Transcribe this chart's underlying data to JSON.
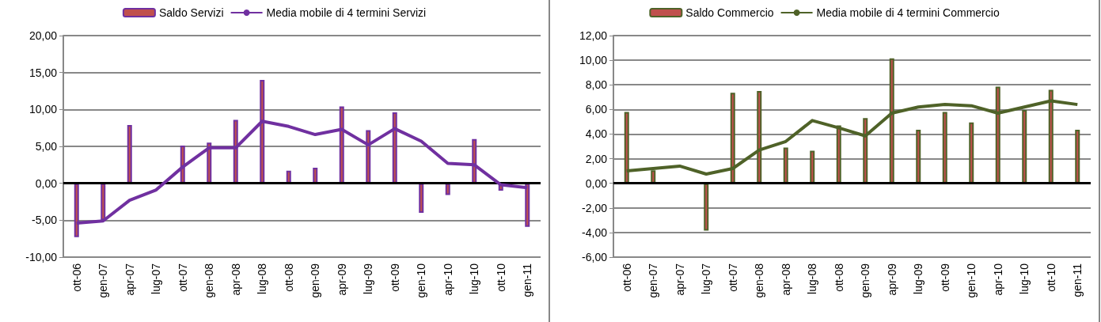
{
  "chart_data": [
    {
      "type": "bar",
      "categories": [
        "ott-06",
        "gen-07",
        "apr-07",
        "lug-07",
        "ott-07",
        "gen-08",
        "apr-08",
        "lug-08",
        "ott-08",
        "gen-09",
        "apr-09",
        "lug-09",
        "ott-09",
        "gen-10",
        "apr-10",
        "lug-10",
        "ott-10",
        "gen-11"
      ],
      "series": [
        {
          "name": "Saldo Servizi",
          "color": "#7030a0",
          "values": [
            -7.3,
            -5.0,
            7.9,
            0,
            5.1,
            5.5,
            8.6,
            14.0,
            1.7,
            2.1,
            10.4,
            7.2,
            9.6,
            -4.0,
            -1.6,
            6.0,
            -1.0,
            -5.9
          ]
        },
        {
          "name": "Media mobile di 4 termini Servizi",
          "type": "line",
          "color": "#7030a0",
          "values": [
            -5.4,
            -5.1,
            -2.3,
            -0.9,
            2.2,
            4.8,
            4.8,
            8.4,
            7.7,
            6.6,
            7.3,
            5.2,
            7.4,
            5.7,
            2.7,
            2.5,
            -0.2,
            -0.6
          ]
        }
      ],
      "ylim": [
        -10,
        20
      ],
      "yticks": [
        {
          "value": -10,
          "label": "-10,00"
        },
        {
          "value": -5,
          "label": "-5,00"
        },
        {
          "value": 0,
          "label": "0,00"
        },
        {
          "value": 5,
          "label": "5,00"
        },
        {
          "value": 10,
          "label": "10,00"
        },
        {
          "value": 15,
          "label": "15,00"
        },
        {
          "value": 20,
          "label": "20,00"
        }
      ],
      "ref_lines": [
        {
          "axis": "y",
          "value": 0,
          "color": "#000000"
        }
      ],
      "grid": "y",
      "legend": "top",
      "marker": "none",
      "line_style": "solid"
    },
    {
      "type": "bar",
      "categories": [
        "ott-06",
        "gen-07",
        "apr-07",
        "lug-07",
        "ott-07",
        "gen-08",
        "apr-08",
        "lug-08",
        "ott-08",
        "gen-09",
        "apr-09",
        "lug-09",
        "ott-09",
        "gen-10",
        "apr-10",
        "lug-10",
        "ott-10",
        "gen-11"
      ],
      "series": [
        {
          "name": "Saldo Commercio",
          "color": "#4f6228",
          "values": [
            5.8,
            1.05,
            0,
            -3.85,
            7.35,
            7.5,
            2.9,
            2.65,
            4.7,
            5.3,
            10.15,
            4.35,
            5.8,
            4.95,
            7.85,
            5.95,
            7.6,
            4.35
          ]
        },
        {
          "name": "Media mobile di 4 termini Commercio",
          "type": "line",
          "color": "#4f6228",
          "values": [
            1.0,
            1.2,
            1.4,
            0.75,
            1.2,
            2.7,
            3.4,
            5.1,
            4.5,
            3.85,
            5.7,
            6.2,
            6.4,
            6.3,
            5.7,
            6.2,
            6.7,
            6.4
          ]
        }
      ],
      "ylim": [
        -6,
        12
      ],
      "yticks": [
        {
          "value": -6,
          "label": "-6,00"
        },
        {
          "value": -4,
          "label": "-4,00"
        },
        {
          "value": -2,
          "label": "-2,00"
        },
        {
          "value": 0,
          "label": "0,00"
        },
        {
          "value": 2,
          "label": "2,00"
        },
        {
          "value": 4,
          "label": "4,00"
        },
        {
          "value": 6,
          "label": "6,00"
        },
        {
          "value": 8,
          "label": "8,00"
        },
        {
          "value": 10,
          "label": "10,00"
        },
        {
          "value": 12,
          "label": "12,00"
        }
      ],
      "ref_lines": [
        {
          "axis": "y",
          "value": 0,
          "color": "#000000"
        }
      ],
      "grid": "y",
      "legend": "top",
      "marker": "none",
      "line_style": "solid"
    }
  ]
}
